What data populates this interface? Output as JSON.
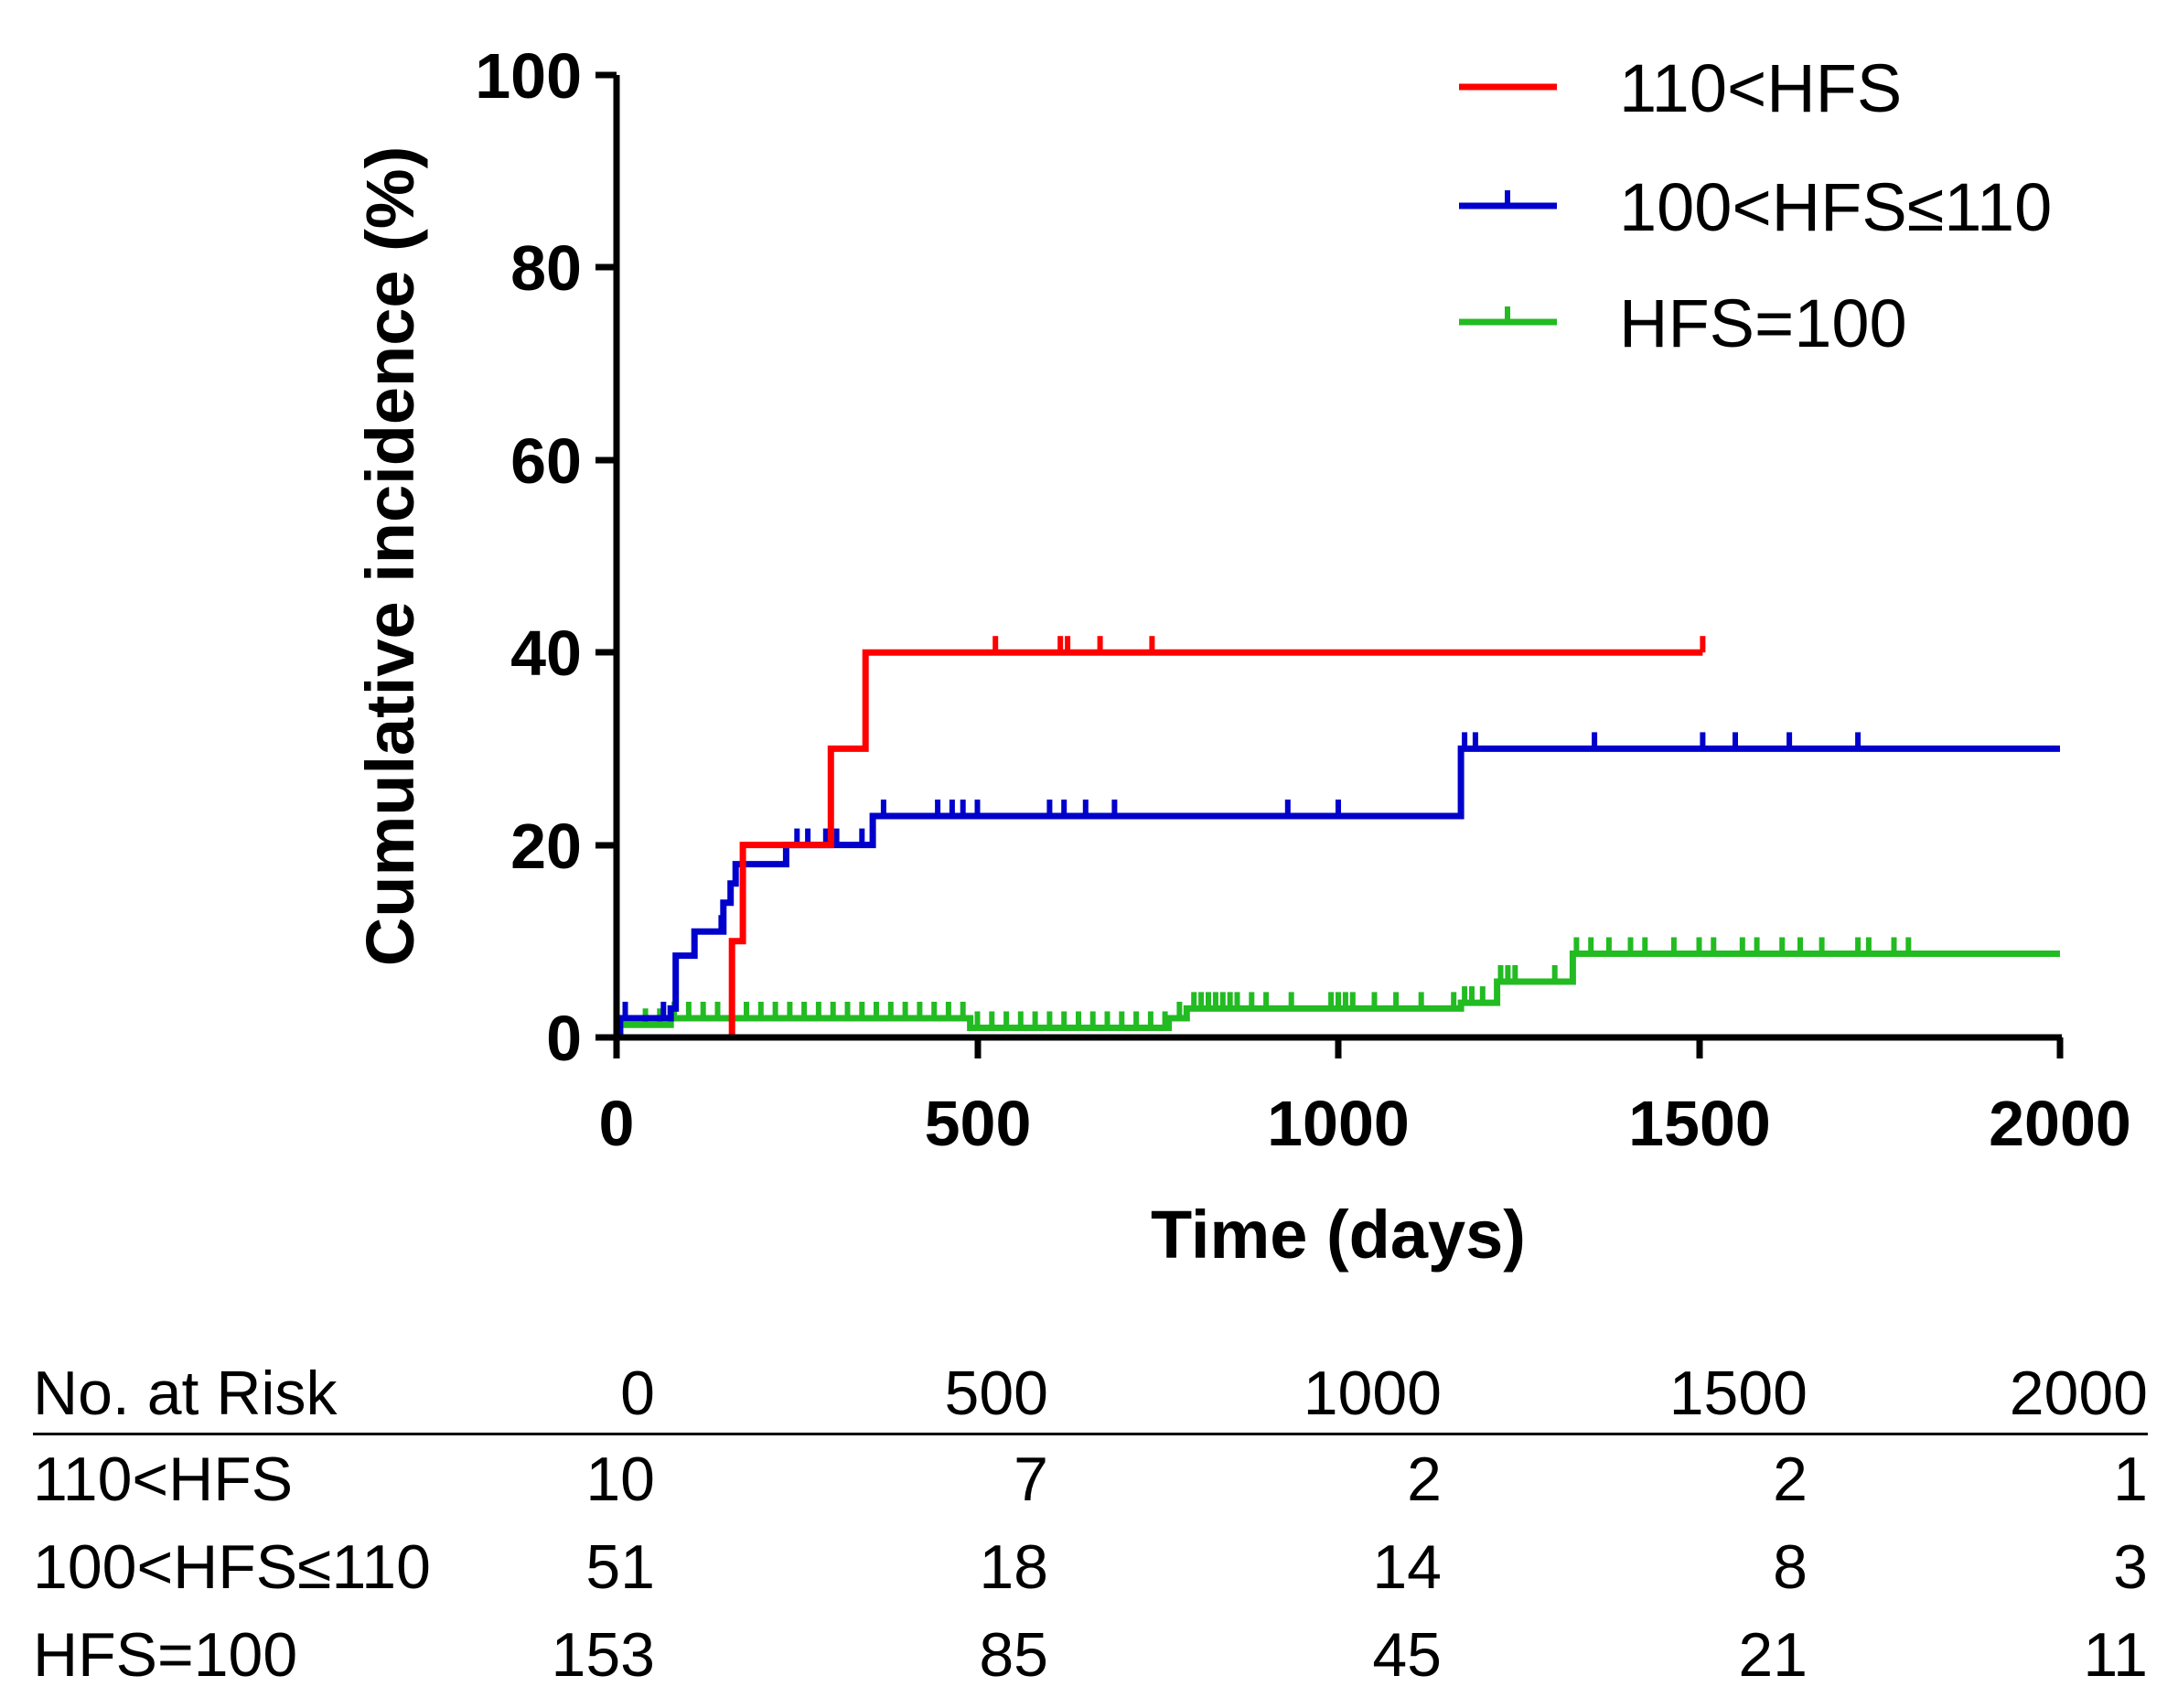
{
  "chart_data": {
    "type": "line",
    "subtype": "step (cumulative incidence, Kaplan-Meier style with censor ticks)",
    "title": "",
    "xlabel": "Time (days)",
    "ylabel": "Cumulative incidence (%)",
    "xlim": [
      0,
      2000
    ],
    "ylim": [
      0,
      100
    ],
    "xticks": [
      "0",
      "500",
      "1000",
      "1500",
      "2000"
    ],
    "yticks": [
      "0",
      "20",
      "40",
      "60",
      "80",
      "100"
    ],
    "legend_position": "top-right",
    "series": [
      {
        "name": "110<HFS",
        "color": "#ff0000",
        "steps": [
          [
            0,
            0
          ],
          [
            160,
            0
          ],
          [
            160,
            10
          ],
          [
            175,
            10
          ],
          [
            175,
            20
          ],
          [
            297,
            20
          ],
          [
            297,
            30
          ],
          [
            345,
            30
          ],
          [
            345,
            40
          ],
          [
            1505,
            40
          ]
        ],
        "censor_x": [
          525,
          615,
          625,
          670,
          742,
          1505
        ]
      },
      {
        "name": "100<HFS≤110",
        "color": "#0000cc",
        "steps": [
          [
            0,
            0
          ],
          [
            5,
            0
          ],
          [
            5,
            2
          ],
          [
            75,
            2
          ],
          [
            75,
            3
          ],
          [
            82,
            3
          ],
          [
            82,
            8.5
          ],
          [
            108,
            8.5
          ],
          [
            108,
            11
          ],
          [
            148,
            11
          ],
          [
            148,
            14
          ],
          [
            158,
            14
          ],
          [
            158,
            16
          ],
          [
            165,
            16
          ],
          [
            165,
            18
          ],
          [
            235,
            18
          ],
          [
            235,
            20
          ],
          [
            355,
            20
          ],
          [
            355,
            23
          ],
          [
            1170,
            23
          ],
          [
            1170,
            30
          ],
          [
            2000,
            30
          ]
        ],
        "censor_x": [
          12,
          65,
          145,
          250,
          265,
          290,
          305,
          340,
          370,
          445,
          465,
          480,
          500,
          600,
          620,
          650,
          690,
          930,
          1000,
          1175,
          1190,
          1355,
          1505,
          1550,
          1625,
          1720
        ]
      },
      {
        "name": "HFS=100",
        "color": "#22bb22",
        "steps": [
          [
            0,
            0
          ],
          [
            5,
            0
          ],
          [
            5,
            1.3
          ],
          [
            75,
            1.3
          ],
          [
            75,
            2
          ],
          [
            490,
            2
          ],
          [
            490,
            1
          ],
          [
            765,
            1
          ],
          [
            765,
            2
          ],
          [
            790,
            2
          ],
          [
            790,
            3
          ],
          [
            1170,
            3
          ],
          [
            1170,
            3.6
          ],
          [
            1220,
            3.6
          ],
          [
            1220,
            5.8
          ],
          [
            1325,
            5.8
          ],
          [
            1325,
            8.7
          ],
          [
            2000,
            8.7
          ]
        ],
        "censor_x": [
          40,
          60,
          80,
          100,
          120,
          140,
          160,
          180,
          200,
          220,
          240,
          260,
          280,
          300,
          320,
          340,
          360,
          380,
          400,
          420,
          440,
          460,
          480,
          500,
          520,
          540,
          560,
          580,
          600,
          620,
          640,
          660,
          680,
          700,
          720,
          740,
          760,
          780,
          800,
          810,
          820,
          830,
          840,
          850,
          860,
          880,
          900,
          935,
          990,
          1000,
          1010,
          1020,
          1050,
          1080,
          1115,
          1160,
          1175,
          1185,
          1200,
          1225,
          1235,
          1245,
          1300,
          1330,
          1350,
          1375,
          1405,
          1425,
          1465,
          1500,
          1520,
          1560,
          1580,
          1615,
          1640,
          1670,
          1720,
          1735,
          1770,
          1790
        ]
      }
    ]
  },
  "risk_table": {
    "header_label": "No. at Risk",
    "times": [
      "0",
      "500",
      "1000",
      "1500",
      "2000"
    ],
    "rows": [
      {
        "label": "110<HFS",
        "values": [
          "10",
          "7",
          "2",
          "2",
          "1"
        ]
      },
      {
        "label": "100<HFS≤110",
        "values": [
          "51",
          "18",
          "14",
          "8",
          "3"
        ]
      },
      {
        "label": "HFS=100",
        "values": [
          "153",
          "85",
          "45",
          "21",
          "11"
        ]
      }
    ]
  }
}
